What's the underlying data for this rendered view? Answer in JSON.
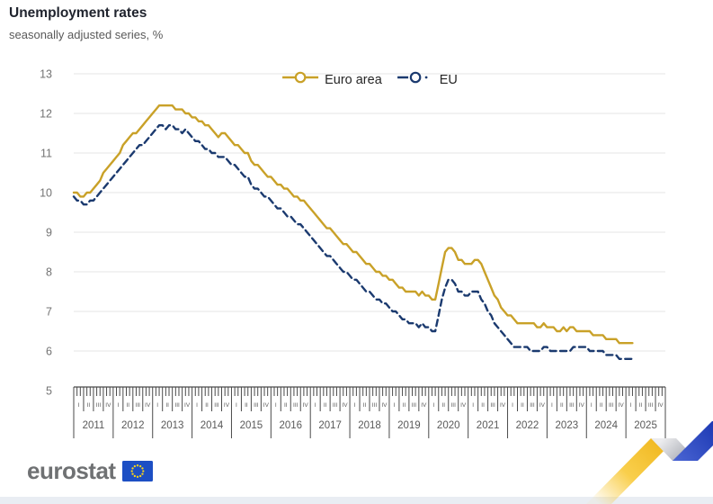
{
  "header": {
    "title": "Unemployment rates",
    "subtitle": "seasonally adjusted series, %"
  },
  "legend": [
    {
      "label": "Euro area",
      "color": "#c9a128",
      "style": "solid"
    },
    {
      "label": "EU",
      "color": "#1b3a6f",
      "style": "dashed"
    }
  ],
  "footer": {
    "brand": "eurostat"
  },
  "colors": {
    "euro_area": "#c9a128",
    "eu": "#1b3a6f",
    "grid": "#e4e4e4",
    "axis": "#4a4a4a",
    "tick_label": "#737373",
    "year_label": "#595959",
    "deco_yellow": "#f3bc1f",
    "deco_gray": "#b9bcc4",
    "deco_blue": "#1c3fbe",
    "flag_blue": "#1d4fc4",
    "flag_stars": "#ffd617",
    "bottom_strip": "#e9edf3"
  },
  "chart_data": {
    "type": "line",
    "title": "Unemployment rates",
    "subtitle": "seasonally adjusted series, %",
    "frequency": "monthly",
    "x_range": [
      "2011-01",
      "2025-03"
    ],
    "ylim": [
      5,
      13
    ],
    "yticks": [
      5,
      6,
      7,
      8,
      9,
      10,
      11,
      12,
      13
    ],
    "grid": true,
    "legend_position": "top-center",
    "x_axis": {
      "years": [
        2011,
        2012,
        2013,
        2014,
        2015,
        2016,
        2017,
        2018,
        2019,
        2020,
        2021,
        2022,
        2023,
        2024,
        2025
      ],
      "quarter_labels": [
        "I",
        "II",
        "III",
        "IV"
      ]
    },
    "series": [
      {
        "name": "Euro area",
        "color": "#c9a128",
        "dash": "solid",
        "values": [
          10.0,
          10.0,
          9.9,
          9.9,
          10.0,
          10.0,
          10.1,
          10.2,
          10.3,
          10.5,
          10.6,
          10.7,
          10.8,
          10.9,
          11.0,
          11.2,
          11.3,
          11.4,
          11.5,
          11.5,
          11.6,
          11.7,
          11.8,
          11.9,
          12.0,
          12.1,
          12.2,
          12.2,
          12.2,
          12.2,
          12.2,
          12.1,
          12.1,
          12.1,
          12.0,
          12.0,
          11.9,
          11.9,
          11.8,
          11.8,
          11.7,
          11.7,
          11.6,
          11.5,
          11.4,
          11.5,
          11.5,
          11.4,
          11.3,
          11.2,
          11.2,
          11.1,
          11.0,
          11.0,
          10.8,
          10.7,
          10.7,
          10.6,
          10.5,
          10.4,
          10.4,
          10.3,
          10.2,
          10.2,
          10.1,
          10.1,
          10.0,
          9.9,
          9.9,
          9.8,
          9.8,
          9.7,
          9.6,
          9.5,
          9.4,
          9.3,
          9.2,
          9.1,
          9.1,
          9.0,
          8.9,
          8.8,
          8.7,
          8.7,
          8.6,
          8.5,
          8.5,
          8.4,
          8.3,
          8.2,
          8.2,
          8.1,
          8.0,
          8.0,
          7.9,
          7.9,
          7.8,
          7.8,
          7.7,
          7.6,
          7.6,
          7.5,
          7.5,
          7.5,
          7.5,
          7.4,
          7.5,
          7.4,
          7.4,
          7.3,
          7.3,
          7.7,
          8.1,
          8.5,
          8.6,
          8.6,
          8.5,
          8.3,
          8.3,
          8.2,
          8.2,
          8.2,
          8.3,
          8.3,
          8.2,
          8.0,
          7.8,
          7.6,
          7.4,
          7.3,
          7.1,
          7.0,
          6.9,
          6.9,
          6.8,
          6.7,
          6.7,
          6.7,
          6.7,
          6.7,
          6.7,
          6.6,
          6.6,
          6.7,
          6.6,
          6.6,
          6.6,
          6.5,
          6.5,
          6.6,
          6.5,
          6.6,
          6.6,
          6.5,
          6.5,
          6.5,
          6.5,
          6.5,
          6.4,
          6.4,
          6.4,
          6.4,
          6.3,
          6.3,
          6.3,
          6.3,
          6.2,
          6.2,
          6.2,
          6.2,
          6.2
        ]
      },
      {
        "name": "EU",
        "color": "#1b3a6f",
        "dash": "dashed",
        "values": [
          9.9,
          9.8,
          9.8,
          9.7,
          9.7,
          9.8,
          9.8,
          9.9,
          10.0,
          10.1,
          10.2,
          10.3,
          10.4,
          10.5,
          10.6,
          10.7,
          10.8,
          10.9,
          11.0,
          11.1,
          11.2,
          11.2,
          11.3,
          11.4,
          11.5,
          11.6,
          11.7,
          11.7,
          11.6,
          11.7,
          11.7,
          11.6,
          11.6,
          11.5,
          11.6,
          11.5,
          11.4,
          11.3,
          11.3,
          11.2,
          11.1,
          11.1,
          11.0,
          11.0,
          10.9,
          10.9,
          10.9,
          10.8,
          10.7,
          10.7,
          10.6,
          10.5,
          10.4,
          10.4,
          10.2,
          10.1,
          10.1,
          10.0,
          9.9,
          9.9,
          9.8,
          9.7,
          9.6,
          9.6,
          9.5,
          9.4,
          9.4,
          9.3,
          9.2,
          9.2,
          9.1,
          9.0,
          8.9,
          8.8,
          8.7,
          8.6,
          8.5,
          8.4,
          8.4,
          8.3,
          8.2,
          8.1,
          8.0,
          8.0,
          7.9,
          7.8,
          7.8,
          7.7,
          7.6,
          7.5,
          7.5,
          7.4,
          7.3,
          7.3,
          7.2,
          7.2,
          7.1,
          7.0,
          7.0,
          6.9,
          6.8,
          6.8,
          6.7,
          6.7,
          6.7,
          6.6,
          6.7,
          6.6,
          6.6,
          6.5,
          6.5,
          6.9,
          7.3,
          7.6,
          7.8,
          7.8,
          7.7,
          7.5,
          7.5,
          7.4,
          7.4,
          7.5,
          7.5,
          7.5,
          7.3,
          7.2,
          7.0,
          6.9,
          6.7,
          6.6,
          6.5,
          6.4,
          6.3,
          6.2,
          6.1,
          6.1,
          6.1,
          6.1,
          6.1,
          6.0,
          6.0,
          6.0,
          6.0,
          6.1,
          6.1,
          6.0,
          6.0,
          6.0,
          6.0,
          6.0,
          6.0,
          6.0,
          6.1,
          6.1,
          6.1,
          6.1,
          6.1,
          6.0,
          6.0,
          6.0,
          6.0,
          6.0,
          5.9,
          5.9,
          5.9,
          5.9,
          5.8,
          5.8,
          5.8,
          5.8,
          5.8
        ]
      }
    ]
  }
}
